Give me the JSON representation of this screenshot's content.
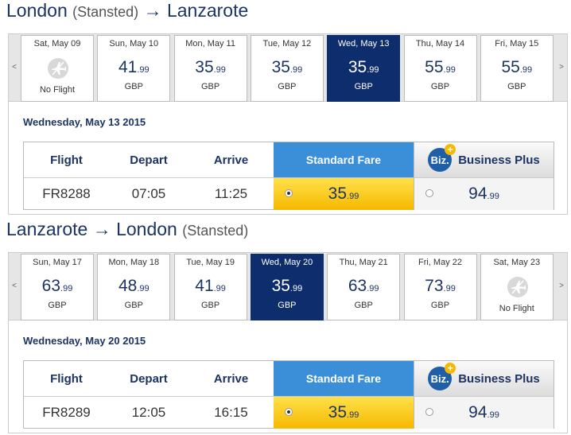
{
  "journeys": [
    {
      "origin": "London",
      "origin_airport": "(Stansted)",
      "arrow": "→",
      "destination": "Lanzarote",
      "prev": "<",
      "next": ">",
      "days": [
        {
          "label": "Sat, May 09",
          "status": "No Flight"
        },
        {
          "label": "Sun, May 10",
          "price": "41",
          "cents": ".99",
          "currency": "GBP"
        },
        {
          "label": "Mon, May 11",
          "price": "35",
          "cents": ".99",
          "currency": "GBP"
        },
        {
          "label": "Tue, May 12",
          "price": "35",
          "cents": ".99",
          "currency": "GBP"
        },
        {
          "label": "Wed, May 13",
          "price": "35",
          "cents": ".99",
          "currency": "GBP",
          "selected": true
        },
        {
          "label": "Thu, May 14",
          "price": "55",
          "cents": ".99",
          "currency": "GBP"
        },
        {
          "label": "Fri, May 15",
          "price": "55",
          "cents": ".99",
          "currency": "GBP"
        }
      ],
      "date": "Wednesday, May 13 2015",
      "headers": {
        "flight": "Flight",
        "depart": "Depart",
        "arrive": "Arrive",
        "standard": "Standard Fare",
        "badge": "Biz.",
        "business": "Business Plus"
      },
      "row": {
        "flight": "FR8288",
        "depart": "07:05",
        "arrive": "11:25",
        "standard_price": "35",
        "standard_cents": ".99",
        "business_price": "94",
        "business_cents": ".99"
      }
    },
    {
      "origin": "Lanzarote",
      "arrow": "→",
      "destination": "London",
      "destination_airport": "(Stansted)",
      "prev": "<",
      "next": ">",
      "days": [
        {
          "label": "Sun, May 17",
          "price": "63",
          "cents": ".99",
          "currency": "GBP"
        },
        {
          "label": "Mon, May 18",
          "price": "48",
          "cents": ".99",
          "currency": "GBP"
        },
        {
          "label": "Tue, May 19",
          "price": "41",
          "cents": ".99",
          "currency": "GBP"
        },
        {
          "label": "Wed, May 20",
          "price": "35",
          "cents": ".99",
          "currency": "GBP",
          "selected": true
        },
        {
          "label": "Thu, May 21",
          "price": "63",
          "cents": ".99",
          "currency": "GBP"
        },
        {
          "label": "Fri, May 22",
          "price": "73",
          "cents": ".99",
          "currency": "GBP"
        },
        {
          "label": "Sat, May 23",
          "status": "No Flight"
        }
      ],
      "date": "Wednesday, May 20 2015",
      "headers": {
        "flight": "Flight",
        "depart": "Depart",
        "arrive": "Arrive",
        "standard": "Standard Fare",
        "badge": "Biz.",
        "business": "Business Plus"
      },
      "row": {
        "flight": "FR8289",
        "depart": "12:05",
        "arrive": "16:15",
        "standard_price": "35",
        "standard_cents": ".99",
        "business_price": "94",
        "business_cents": ".99"
      }
    }
  ]
}
